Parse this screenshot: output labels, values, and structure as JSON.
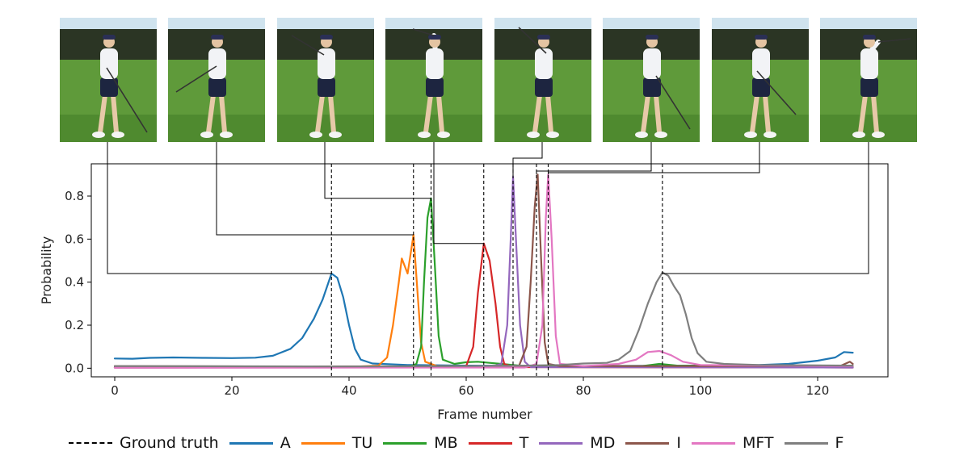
{
  "chart_data": {
    "type": "line",
    "xlabel": "Frame number",
    "ylabel": "Probability",
    "xlim": [
      -4,
      132
    ],
    "ylim": [
      -0.04,
      0.95
    ],
    "xticks": [
      0,
      20,
      40,
      60,
      80,
      100,
      120
    ],
    "yticks": [
      0.0,
      0.2,
      0.4,
      0.6,
      0.8
    ],
    "ytick_labels": [
      "0.0",
      "0.2",
      "0.4",
      "0.6",
      "0.8"
    ],
    "grid": false,
    "legend_position": "bottom",
    "ground_truth": {
      "name": "Ground truth",
      "frames": [
        37,
        51,
        54,
        63,
        68,
        72,
        74,
        93.5
      ]
    },
    "series": [
      {
        "name": "A",
        "color": "#1f77b4",
        "points": [
          [
            0,
            0.045
          ],
          [
            3,
            0.044
          ],
          [
            6,
            0.048
          ],
          [
            10,
            0.05
          ],
          [
            15,
            0.048
          ],
          [
            20,
            0.047
          ],
          [
            24,
            0.049
          ],
          [
            27,
            0.058
          ],
          [
            30,
            0.09
          ],
          [
            32,
            0.14
          ],
          [
            34,
            0.23
          ],
          [
            35.5,
            0.32
          ],
          [
            37,
            0.44
          ],
          [
            38,
            0.42
          ],
          [
            39,
            0.33
          ],
          [
            40,
            0.2
          ],
          [
            41,
            0.09
          ],
          [
            42,
            0.04
          ],
          [
            44,
            0.022
          ],
          [
            50,
            0.015
          ],
          [
            60,
            0.012
          ],
          [
            80,
            0.01
          ],
          [
            100,
            0.012
          ],
          [
            110,
            0.015
          ],
          [
            115,
            0.02
          ],
          [
            120,
            0.035
          ],
          [
            123,
            0.05
          ],
          [
            124.5,
            0.075
          ],
          [
            126,
            0.072
          ]
        ]
      },
      {
        "name": "TU",
        "color": "#ff7f0e",
        "points": [
          [
            0,
            0.005
          ],
          [
            40,
            0.006
          ],
          [
            45,
            0.012
          ],
          [
            46.5,
            0.05
          ],
          [
            47.5,
            0.2
          ],
          [
            48.5,
            0.4
          ],
          [
            49,
            0.51
          ],
          [
            50,
            0.44
          ],
          [
            51,
            0.62
          ],
          [
            51.7,
            0.35
          ],
          [
            52.3,
            0.12
          ],
          [
            53,
            0.03
          ],
          [
            55,
            0.01
          ],
          [
            80,
            0.005
          ],
          [
            126,
            0.004
          ]
        ]
      },
      {
        "name": "MB",
        "color": "#2ca02c",
        "points": [
          [
            0,
            0.003
          ],
          [
            50,
            0.004
          ],
          [
            51.5,
            0.02
          ],
          [
            52.3,
            0.1
          ],
          [
            52.8,
            0.4
          ],
          [
            53.4,
            0.7
          ],
          [
            54,
            0.79
          ],
          [
            54.6,
            0.5
          ],
          [
            55.3,
            0.15
          ],
          [
            56,
            0.04
          ],
          [
            58,
            0.02
          ],
          [
            60,
            0.028
          ],
          [
            62,
            0.03
          ],
          [
            64,
            0.025
          ],
          [
            66,
            0.02
          ],
          [
            70,
            0.01
          ],
          [
            90,
            0.01
          ],
          [
            93,
            0.02
          ],
          [
            96,
            0.012
          ],
          [
            126,
            0.006
          ]
        ]
      },
      {
        "name": "T",
        "color": "#d62728",
        "points": [
          [
            0,
            0.003
          ],
          [
            58,
            0.004
          ],
          [
            60,
            0.01
          ],
          [
            61.2,
            0.1
          ],
          [
            62,
            0.35
          ],
          [
            63,
            0.58
          ],
          [
            64,
            0.5
          ],
          [
            65,
            0.3
          ],
          [
            65.8,
            0.1
          ],
          [
            66.5,
            0.02
          ],
          [
            68,
            0.005
          ],
          [
            126,
            0.003
          ]
        ]
      },
      {
        "name": "MD",
        "color": "#9467bd",
        "points": [
          [
            0,
            0.003
          ],
          [
            64,
            0.005
          ],
          [
            66,
            0.02
          ],
          [
            67,
            0.2
          ],
          [
            67.6,
            0.6
          ],
          [
            68,
            0.89
          ],
          [
            68.5,
            0.6
          ],
          [
            69.2,
            0.2
          ],
          [
            70,
            0.03
          ],
          [
            71,
            0.005
          ],
          [
            126,
            0.003
          ]
        ]
      },
      {
        "name": "I",
        "color": "#8c564b",
        "points": [
          [
            0,
            0.01
          ],
          [
            30,
            0.008
          ],
          [
            69,
            0.01
          ],
          [
            70.3,
            0.1
          ],
          [
            71,
            0.4
          ],
          [
            71.7,
            0.75
          ],
          [
            72.2,
            0.9
          ],
          [
            72.8,
            0.5
          ],
          [
            73.4,
            0.12
          ],
          [
            74,
            0.02
          ],
          [
            76,
            0.01
          ],
          [
            100,
            0.01
          ],
          [
            124,
            0.012
          ],
          [
            125.5,
            0.03
          ],
          [
            126,
            0.02
          ]
        ]
      },
      {
        "name": "MFT",
        "color": "#e377c2",
        "points": [
          [
            0,
            0.002
          ],
          [
            70,
            0.003
          ],
          [
            72,
            0.02
          ],
          [
            73,
            0.2
          ],
          [
            73.6,
            0.7
          ],
          [
            74,
            0.9
          ],
          [
            74.6,
            0.6
          ],
          [
            75.3,
            0.15
          ],
          [
            76,
            0.02
          ],
          [
            80,
            0.01
          ],
          [
            86,
            0.02
          ],
          [
            89,
            0.04
          ],
          [
            91,
            0.075
          ],
          [
            93,
            0.08
          ],
          [
            95,
            0.06
          ],
          [
            97,
            0.03
          ],
          [
            100,
            0.015
          ],
          [
            126,
            0.01
          ]
        ]
      },
      {
        "name": "F",
        "color": "#7f7f7f",
        "points": [
          [
            0,
            0.01
          ],
          [
            40,
            0.008
          ],
          [
            60,
            0.01
          ],
          [
            70,
            0.012
          ],
          [
            76,
            0.015
          ],
          [
            80,
            0.022
          ],
          [
            84,
            0.025
          ],
          [
            86,
            0.04
          ],
          [
            88,
            0.08
          ],
          [
            89.5,
            0.18
          ],
          [
            91,
            0.3
          ],
          [
            92.5,
            0.4
          ],
          [
            93.5,
            0.445
          ],
          [
            94.5,
            0.43
          ],
          [
            95.5,
            0.38
          ],
          [
            96.5,
            0.34
          ],
          [
            97.5,
            0.25
          ],
          [
            98.5,
            0.14
          ],
          [
            99.5,
            0.07
          ],
          [
            101,
            0.03
          ],
          [
            104,
            0.02
          ],
          [
            110,
            0.015
          ],
          [
            126,
            0.012
          ]
        ]
      }
    ]
  },
  "thumbnails": [
    {
      "name": "A",
      "pose": "address"
    },
    {
      "name": "TU",
      "pose": "toe-up"
    },
    {
      "name": "MB",
      "pose": "mid-backswing"
    },
    {
      "name": "T",
      "pose": "top"
    },
    {
      "name": "MD",
      "pose": "mid-downswing"
    },
    {
      "name": "I",
      "pose": "impact"
    },
    {
      "name": "MFT",
      "pose": "mid-follow-through"
    },
    {
      "name": "F",
      "pose": "finish"
    }
  ],
  "legend": {
    "ground_truth_label": "Ground truth",
    "labels": [
      "A",
      "TU",
      "MB",
      "T",
      "MD",
      "I",
      "MFT",
      "F"
    ]
  }
}
